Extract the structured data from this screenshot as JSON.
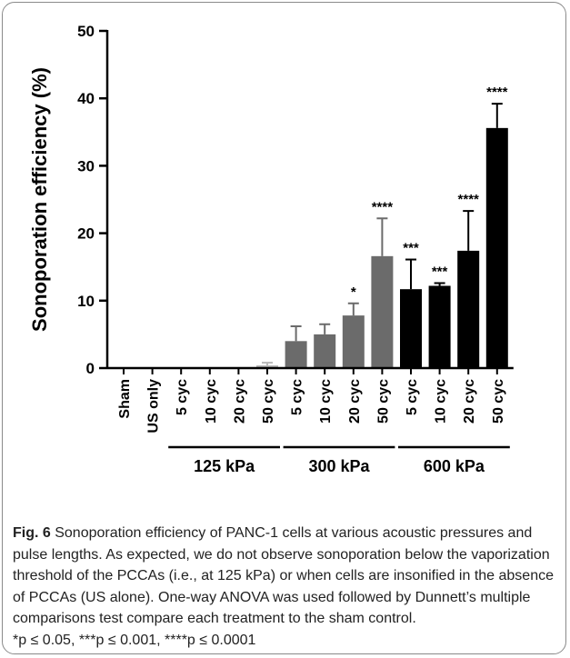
{
  "chart_data": {
    "type": "bar",
    "ylabel": "Sonoporation efficiency (%)",
    "ylim": [
      0,
      50
    ],
    "yticks": [
      "0",
      "10",
      "20",
      "30",
      "40",
      "50"
    ],
    "categories": [
      "Sham",
      "US only",
      "5 cyc",
      "10 cyc",
      "20 cyc",
      "50 cyc",
      "5 cyc",
      "10 cyc",
      "20 cyc",
      "50 cyc",
      "5 cyc",
      "10 cyc",
      "20 cyc",
      "50 cyc"
    ],
    "values": [
      0,
      0,
      0,
      0,
      0,
      0.4,
      4.0,
      5.0,
      7.8,
      16.6,
      11.7,
      12.2,
      17.4,
      35.6
    ],
    "errors": [
      0,
      0,
      0,
      0,
      0,
      0.4,
      2.2,
      1.5,
      1.8,
      5.6,
      4.4,
      0.4,
      5.9,
      3.6
    ],
    "significance": [
      "",
      "",
      "",
      "",
      "",
      "",
      "",
      "",
      "*",
      "****",
      "***",
      "***",
      "****",
      "****"
    ],
    "groups": [
      {
        "label": "125 kPa",
        "start": 2,
        "end": 5,
        "color": "#b9b9b9"
      },
      {
        "label": "300 kPa",
        "start": 6,
        "end": 9,
        "color": "#6b6b6b"
      },
      {
        "label": "600 kPa",
        "start": 10,
        "end": 13,
        "color": "#000000"
      }
    ]
  },
  "caption": {
    "label": "Fig. 6",
    "text": " Sonoporation efficiency of PANC-1 cells at various acoustic pressures and pulse lengths. As expected, we do not observe sonoporation below the vaporization threshold of the PCCAs (i.e., at 125 kPa) or when cells are insonified in the absence of PCCAs (US alone). One-way ANOVA was used followed by Dunnett’s multiple comparisons test compare each treatment to the sham control.",
    "footnote": "*p ≤ 0.05, ***p ≤ 0.001, ****p ≤ 0.0001"
  }
}
